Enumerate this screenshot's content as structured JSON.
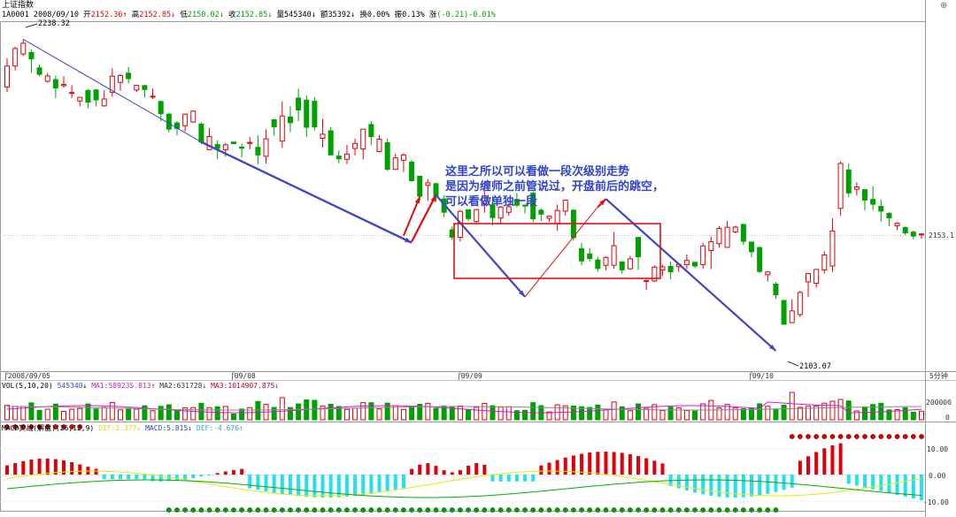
{
  "header": {
    "title": "上证指数",
    "code": "1A0001",
    "date": "2008/09/10",
    "open_label": "开",
    "open": "2152.36",
    "high_label": "高",
    "high": "2152.85",
    "low_label": "低",
    "low": "2150.02",
    "close_label": "收",
    "close": "2152.85",
    "vol_label": "量",
    "vol": "545340",
    "amt_label": "额",
    "amt": "35392",
    "turn_label": "换",
    "turn": "0.00%",
    "amp_label": "振",
    "amp": "0.13%",
    "chg_label": "涨",
    "chg": "(-0.21)-0.01%"
  },
  "timeframe": "5分钟",
  "price_labels": {
    "high_mark": "2238.32",
    "low_mark": "2103.07",
    "last": "2153.1"
  },
  "annotation": {
    "line1": "这里之所以可以看做一段次级别走势",
    "line2": "是因为缠师之前管说过，开盘前后的跳空，",
    "line3": "可以看做单独一段"
  },
  "volume_panel": {
    "name": "VOL(5,10,20)",
    "value": "545340",
    "ma1": "MA1:589235.813",
    "ma2": "MA2:631728",
    "ma3": "MA3:1014907.875",
    "ticks": [
      "200000",
      "0"
    ]
  },
  "macd_panel": {
    "name": "MACD实战(解盘)(26,12,9)",
    "dif": "DIF:1.377",
    "macd": "MACD:5.815",
    "dea": "DEF:-4.676",
    "ticks": [
      "10.00",
      "0.00",
      "-10.00"
    ]
  },
  "colors": {
    "up": "#e0000a",
    "down": "#00a000",
    "trend": "#4046c8",
    "box": "#e01010",
    "dif": "#e8e800",
    "dea": "#00b000",
    "macd_neg": "#22e0f0"
  },
  "chart_data": {
    "type": "candlestick",
    "x_labels": [
      "2008/09/05",
      "09/08",
      "09/09",
      "09/10"
    ],
    "ylim": [
      2095,
      2245
    ],
    "candles": [
      [
        2217.6,
        2226.7,
        2215.4,
        2230.1
      ],
      [
        2226.7,
        2234.3,
        2224.8,
        2235.0
      ],
      [
        2231.9,
        2236.6,
        2231.1,
        2238.3
      ],
      [
        2232.6,
        2229.8,
        2223.6,
        2233.8
      ],
      [
        2225.9,
        2223.1,
        2222.1,
        2227.4
      ],
      [
        2220.1,
        2222.4,
        2219.5,
        2223.7
      ],
      [
        2220.8,
        2217.2,
        2212.9,
        2222.6
      ],
      [
        2218.2,
        2218.7,
        2217.3,
        2222.3
      ],
      [
        2214.9,
        2215.2,
        2212.8,
        2218.4
      ],
      [
        2211.5,
        2213.1,
        2209.2,
        2213.3
      ],
      [
        2216.1,
        2211.0,
        2208.3,
        2216.7
      ],
      [
        2216.3,
        2212.0,
        2209.1,
        2216.6
      ],
      [
        2209.4,
        2212.4,
        2209.1,
        2216.1
      ],
      [
        2215.3,
        2222.3,
        2213.4,
        2225.7
      ],
      [
        2219.6,
        2222.6,
        2215.9,
        2223.3
      ],
      [
        2223.6,
        2221.2,
        2219.1,
        2226.2
      ],
      [
        2216.3,
        2218.3,
        2215.4,
        2218.3
      ],
      [
        2218.2,
        2216.5,
        2213.0,
        2218.5
      ],
      [
        2213.2,
        2213.6,
        2212.3,
        2217.0
      ],
      [
        2211.3,
        2206.0,
        2202.8,
        2211.6
      ],
      [
        2205.8,
        2199.3,
        2198.0,
        2206.5
      ],
      [
        2202.0,
        2199.6,
        2196.6,
        2202.8
      ],
      [
        2200.8,
        2205.8,
        2198.3,
        2206.1
      ],
      [
        2202.4,
        2207.1,
        2202.0,
        2207.5
      ],
      [
        2201.5,
        2193.7,
        2192.7,
        2202.3
      ],
      [
        2190.4,
        2196.1,
        2190.2,
        2199.8
      ],
      [
        2192.6,
        2190.9,
        2186.2,
        2194.4
      ],
      [
        2190.4,
        2192.5,
        2187.3,
        2193.2
      ],
      [
        2193.7,
        2193.0,
        2192.9,
        2193.6
      ],
      [
        2191.5,
        2191.0,
        2187.0,
        2193.0
      ],
      [
        2193.2,
        2193.5,
        2190.6,
        2196.0
      ],
      [
        2191.4,
        2188.1,
        2184.1,
        2196.6
      ],
      [
        2187.5,
        2195.1,
        2184.4,
        2199.2
      ],
      [
        2203.4,
        2200.3,
        2196.5,
        2203.6
      ],
      [
        2194.1,
        2205.0,
        2191.3,
        2211.4
      ],
      [
        2204.6,
        2202.1,
        2198.0,
        2209.2
      ],
      [
        2212.8,
        2207.6,
        2202.7,
        2216.9
      ],
      [
        2211.9,
        2200.1,
        2196.0,
        2213.9
      ],
      [
        2211.4,
        2200.3,
        2198.8,
        2213.1
      ],
      [
        2195.3,
        2197.1,
        2191.3,
        2203.7
      ],
      [
        2198.6,
        2188.1,
        2188.0,
        2200.2
      ],
      [
        2187.6,
        2186.4,
        2184.4,
        2190.1
      ],
      [
        2186.2,
        2188.5,
        2184.1,
        2192.4
      ],
      [
        2190.9,
        2193.1,
        2187.9,
        2195.1
      ],
      [
        2190.7,
        2199.3,
        2186.1,
        2199.5
      ],
      [
        2201.3,
        2196.1,
        2192.3,
        2202.7
      ],
      [
        2189.6,
        2194.9,
        2189.2,
        2196.8
      ],
      [
        2193.4,
        2181.9,
        2181.2,
        2195.3
      ],
      [
        2181.8,
        2186.8,
        2181.6,
        2188.6
      ],
      [
        2185.8,
        2188.1,
        2180.7,
        2188.8
      ],
      [
        2185.0,
        2176.9,
        2176.6,
        2186.0
      ],
      [
        2178.9,
        2170.2,
        2168.2,
        2178.9
      ],
      [
        2174.9,
        2176.0,
        2168.1,
        2177.6
      ],
      [
        2175.6,
        2169.9,
        2167.7,
        2176.1
      ],
      [
        2169.0,
        2163.2,
        2161.1,
        2170.6
      ],
      [
        2155.6,
        2152.4,
        2151.2,
        2157.0
      ],
      [
        2152.3,
        2163.6,
        2150.5,
        2164.2
      ],
      [
        2164.3,
        2160.5,
        2159.4,
        2164.4
      ],
      [
        2159.2,
        2164.4,
        2158.7,
        2164.7
      ],
      [
        2167.1,
        2170.3,
        2163.0,
        2172.4
      ],
      [
        2166.4,
        2160.9,
        2157.5,
        2170.3
      ],
      [
        2160.7,
        2165.5,
        2158.3,
        2166.0
      ],
      [
        2163.2,
        2165.6,
        2161.8,
        2167.2
      ],
      [
        2168.8,
        2166.3,
        2165.4,
        2171.6
      ],
      [
        2166.3,
        2166.0,
        2162.7,
        2166.6
      ],
      [
        2171.5,
        2160.4,
        2158.9,
        2172.3
      ],
      [
        2164.1,
        2162.4,
        2159.4,
        2165.0
      ],
      [
        2160.6,
        2161.5,
        2159.0,
        2161.6
      ],
      [
        2158.2,
        2164.0,
        2155.2,
        2166.5
      ],
      [
        2163.7,
        2168.5,
        2161.8,
        2168.7
      ],
      [
        2164.1,
        2152.2,
        2150.9,
        2164.6
      ],
      [
        2147.4,
        2142.1,
        2140.2,
        2149.9
      ],
      [
        2145.1,
        2143.1,
        2141.9,
        2147.6
      ],
      [
        2142.5,
        2138.8,
        2137.4,
        2143.9
      ],
      [
        2140.2,
        2143.6,
        2138.0,
        2144.1
      ],
      [
        2140.2,
        2148.7,
        2138.7,
        2154.6
      ],
      [
        2141.7,
        2138.2,
        2136.6,
        2141.9
      ],
      [
        2138.7,
        2143.0,
        2138.2,
        2144.3
      ],
      [
        2152.3,
        2143.9,
        2138.3,
        2152.5
      ],
      [
        2133.2,
        2133.6,
        2129.6,
        2133.8
      ],
      [
        2133.4,
        2139.4,
        2132.9,
        2140.2
      ],
      [
        2138.2,
        2139.5,
        2135.5,
        2140.4
      ],
      [
        2139.7,
        2137.4,
        2134.1,
        2141.8
      ],
      [
        2139.6,
        2140.6,
        2137.3,
        2141.0
      ],
      [
        2140.5,
        2142.3,
        2138.6,
        2145.0
      ],
      [
        2141.5,
        2139.9,
        2139.0,
        2141.6
      ],
      [
        2140.5,
        2148.6,
        2138.6,
        2150.0
      ],
      [
        2146.6,
        2150.5,
        2138.5,
        2152.6
      ],
      [
        2149.6,
        2156.2,
        2147.8,
        2157.1
      ],
      [
        2148.0,
        2156.7,
        2147.7,
        2159.6
      ],
      [
        2154.7,
        2156.8,
        2154.1,
        2157.4
      ],
      [
        2157.9,
        2150.6,
        2149.0,
        2158.3
      ],
      [
        2150.3,
        2146.1,
        2143.7,
        2150.4
      ],
      [
        2147.9,
        2137.5,
        2136.9,
        2148.4
      ],
      [
        2136.1,
        2137.3,
        2133.1,
        2137.7
      ],
      [
        2132.0,
        2127.4,
        2125.6,
        2133.0
      ],
      [
        2124.9,
        2114.6,
        2114.4,
        2125.2
      ],
      [
        2115.3,
        2120.4,
        2115.1,
        2125.5
      ],
      [
        2118.8,
        2128.4,
        2117.6,
        2129.1
      ],
      [
        2133.0,
        2136.6,
        2126.5,
        2136.8
      ],
      [
        2132.4,
        2138.4,
        2130.5,
        2138.6
      ],
      [
        2138.2,
        2144.7,
        2136.6,
        2146.3
      ],
      [
        2139.9,
        2155.1,
        2137.3,
        2160.6
      ],
      [
        2164.9,
        2184.4,
        2161.7,
        2185.3
      ],
      [
        2181.6,
        2171.6,
        2169.7,
        2184.4
      ],
      [
        2173.2,
        2174.2,
        2170.5,
        2176.2
      ],
      [
        2173.0,
        2168.5,
        2164.1,
        2173.2
      ],
      [
        2168.8,
        2166.7,
        2164.1,
        2174.4
      ],
      [
        2165.8,
        2163.7,
        2159.2,
        2168.8
      ],
      [
        2162.7,
        2160.8,
        2157.3,
        2163.3
      ],
      [
        2157.4,
        2158.4,
        2155.4,
        2158.9
      ],
      [
        2156.6,
        2154.3,
        2153.3,
        2157.1
      ],
      [
        2154.6,
        2152.9,
        2151.5,
        2155.3
      ],
      [
        2153.8,
        2153.8,
        2151.7,
        2154.1
      ]
    ]
  }
}
